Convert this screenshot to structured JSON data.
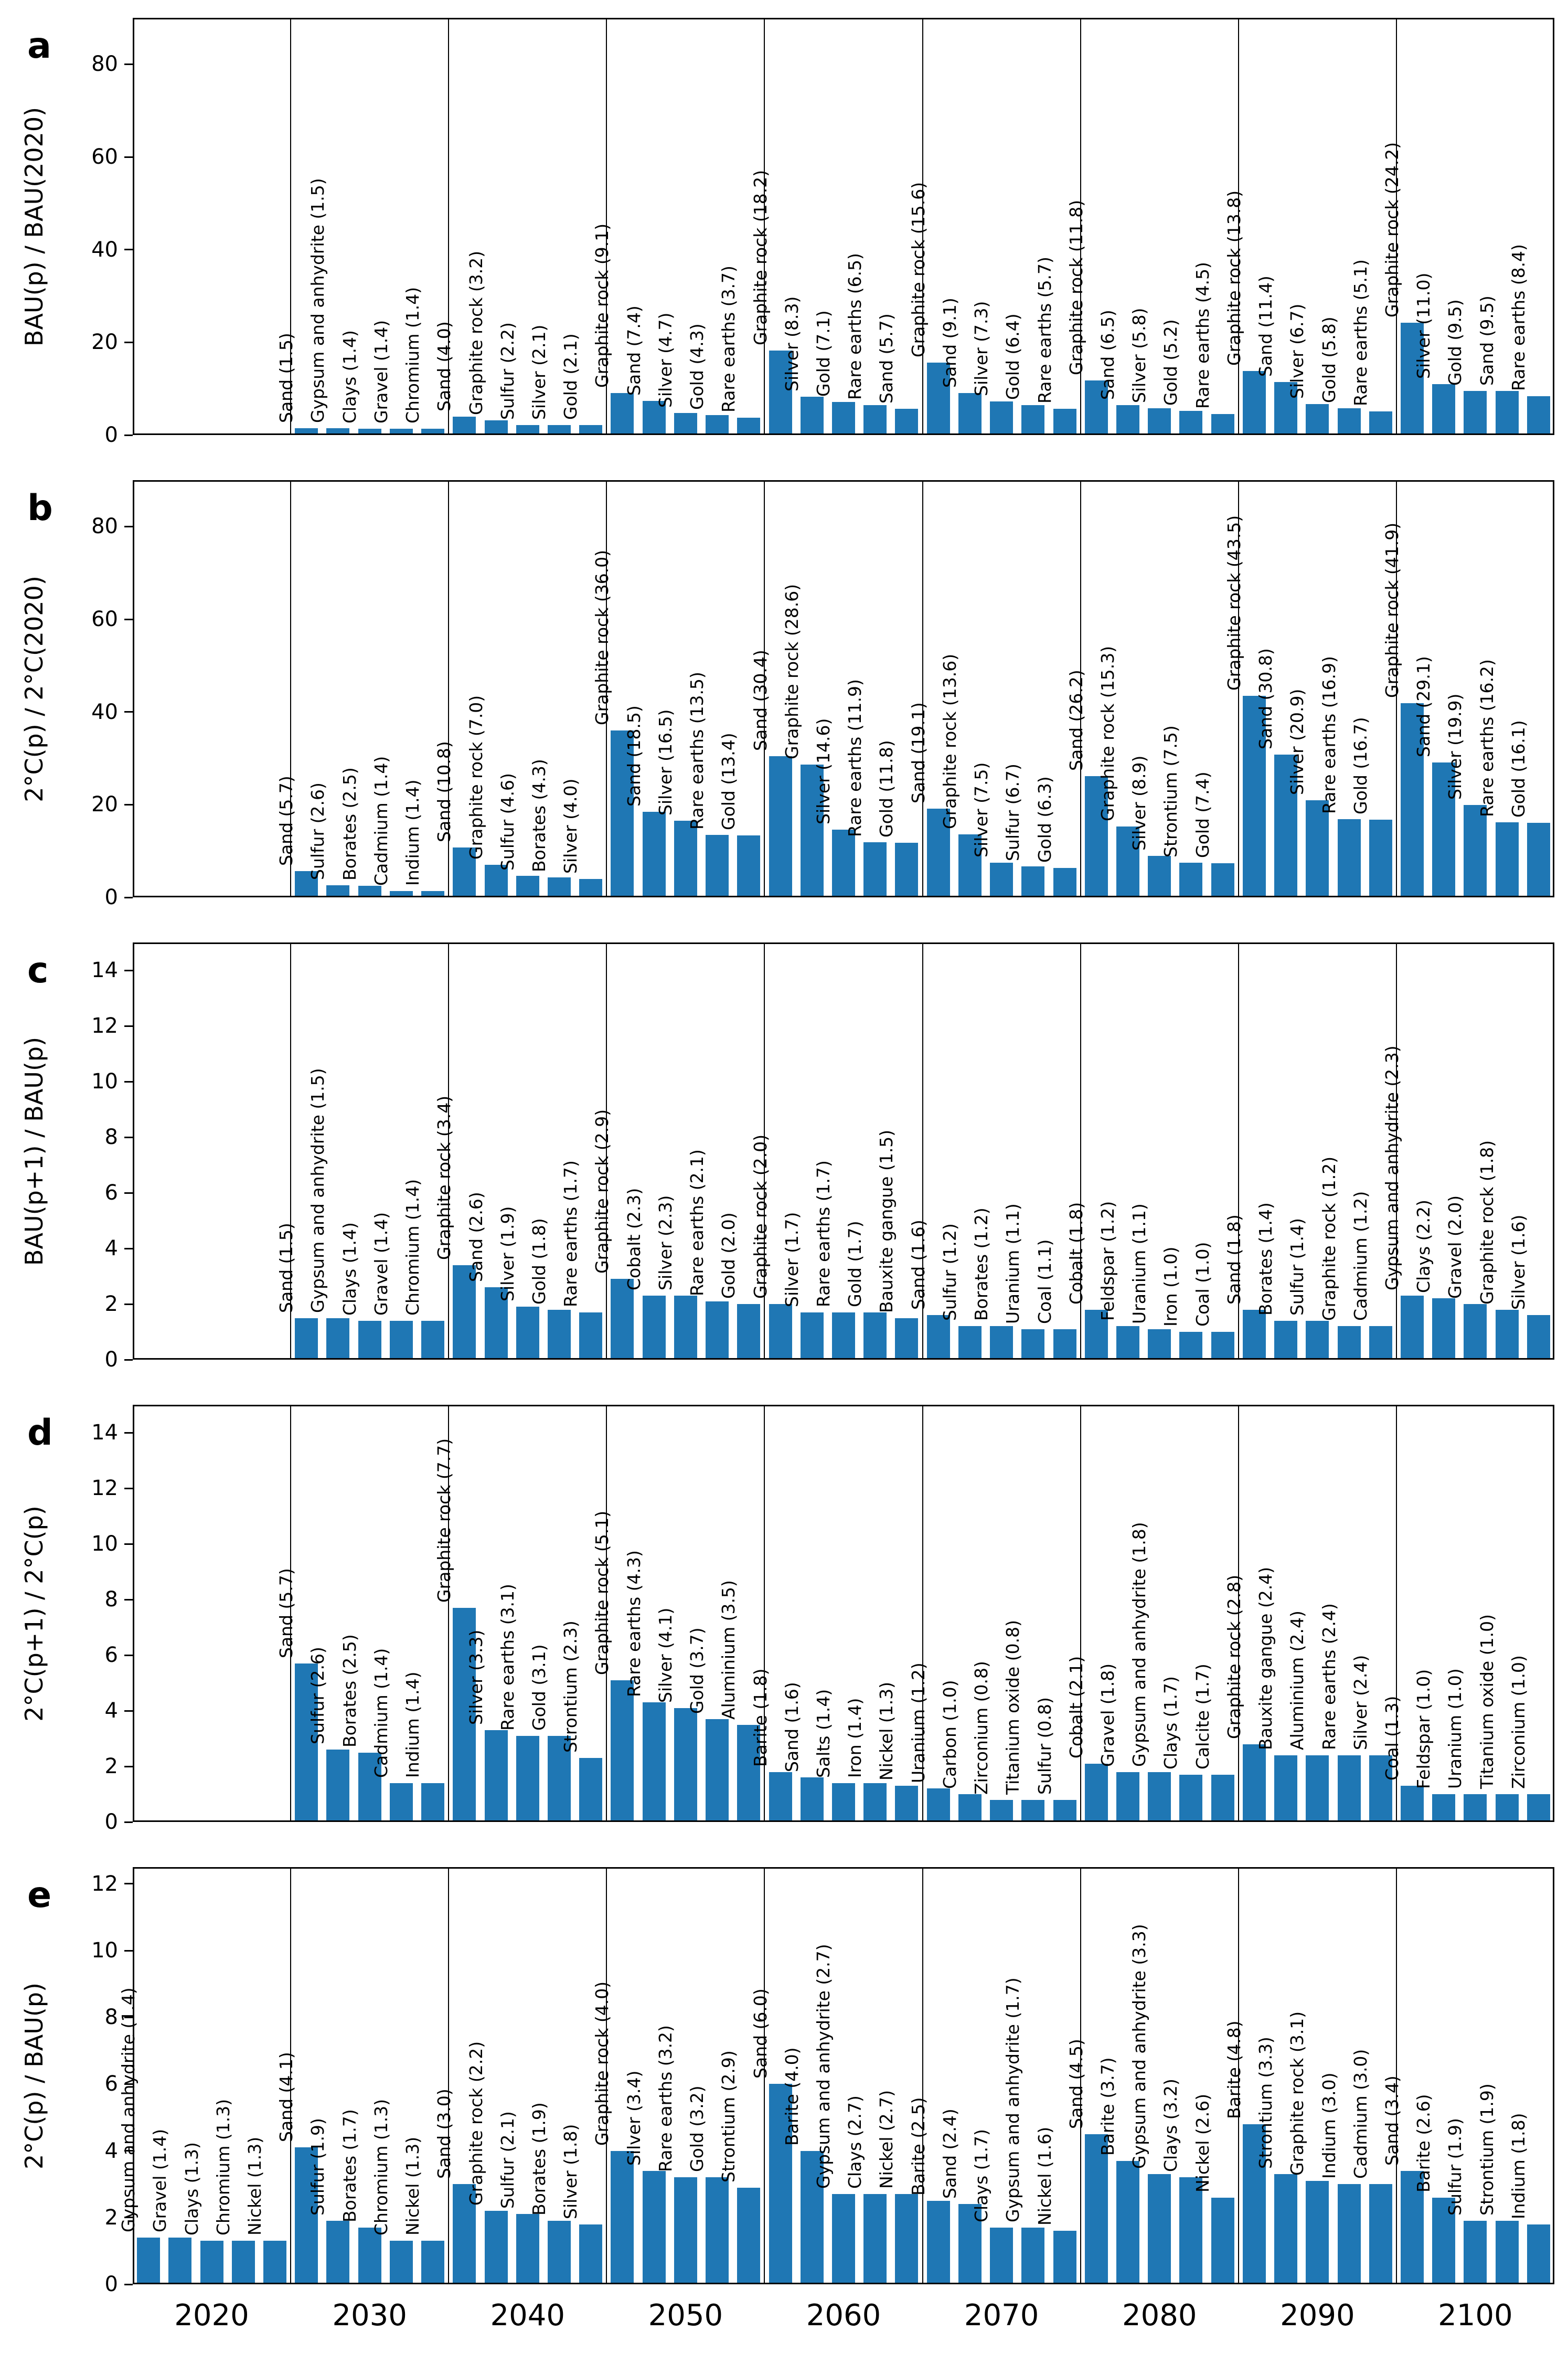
{
  "figure": {
    "bar_color": "#1f77b4",
    "frame_color": "#000000",
    "text_color": "#000000",
    "background": "#ffffff"
  },
  "x_axis": {
    "categories": [
      "2020",
      "2030",
      "2040",
      "2050",
      "2060",
      "2070",
      "2080",
      "2090",
      "2100"
    ]
  },
  "chart_data": [
    {
      "type": "bar",
      "panel_letter": "a",
      "ylabel": "BAU(p) / BAU(2020)",
      "yticks": [
        0,
        20,
        40,
        60,
        80
      ],
      "ylim": [
        0,
        90
      ],
      "grid": false,
      "groups": [
        [],
        [
          {
            "label": "Sand",
            "value": 1.5
          },
          {
            "label": "Gypsum and anhydrite",
            "value": 1.5
          },
          {
            "label": "Clays",
            "value": 1.4
          },
          {
            "label": "Gravel",
            "value": 1.4
          },
          {
            "label": "Chromium",
            "value": 1.4
          }
        ],
        [
          {
            "label": "Sand",
            "value": 4.0
          },
          {
            "label": "Graphite rock",
            "value": 3.2
          },
          {
            "label": "Sulfur",
            "value": 2.2
          },
          {
            "label": "Silver",
            "value": 2.1
          },
          {
            "label": "Gold",
            "value": 2.1
          }
        ],
        [
          {
            "label": "Graphite rock",
            "value": 9.1
          },
          {
            "label": "Sand",
            "value": 7.4
          },
          {
            "label": "Silver",
            "value": 4.7
          },
          {
            "label": "Gold",
            "value": 4.3
          },
          {
            "label": "Rare earths",
            "value": 3.7
          }
        ],
        [
          {
            "label": "Graphite rock",
            "value": 18.2
          },
          {
            "label": "Silver",
            "value": 8.3
          },
          {
            "label": "Gold",
            "value": 7.1
          },
          {
            "label": "Rare earths",
            "value": 6.5
          },
          {
            "label": "Sand",
            "value": 5.7
          }
        ],
        [
          {
            "label": "Graphite rock",
            "value": 15.6
          },
          {
            "label": "Sand",
            "value": 9.1
          },
          {
            "label": "Silver",
            "value": 7.3
          },
          {
            "label": "Gold",
            "value": 6.4
          },
          {
            "label": "Rare earths",
            "value": 5.7
          }
        ],
        [
          {
            "label": "Graphite rock",
            "value": 11.8
          },
          {
            "label": "Sand",
            "value": 6.5
          },
          {
            "label": "Silver",
            "value": 5.8
          },
          {
            "label": "Gold",
            "value": 5.2
          },
          {
            "label": "Rare earths",
            "value": 4.5
          }
        ],
        [
          {
            "label": "Graphite rock",
            "value": 13.8
          },
          {
            "label": "Sand",
            "value": 11.4
          },
          {
            "label": "Silver",
            "value": 6.7
          },
          {
            "label": "Gold",
            "value": 5.8
          },
          {
            "label": "Rare earths",
            "value": 5.1
          }
        ],
        [
          {
            "label": "Graphite rock",
            "value": 24.2
          },
          {
            "label": "Silver",
            "value": 11.0
          },
          {
            "label": "Gold",
            "value": 9.5
          },
          {
            "label": "Sand",
            "value": 9.5
          },
          {
            "label": "Rare earths",
            "value": 8.4
          }
        ]
      ]
    },
    {
      "type": "bar",
      "panel_letter": "b",
      "ylabel": "2°C(p) / 2°C(2020)",
      "yticks": [
        0,
        20,
        40,
        60,
        80
      ],
      "ylim": [
        0,
        90
      ],
      "grid": false,
      "groups": [
        [],
        [
          {
            "label": "Sand",
            "value": 5.7
          },
          {
            "label": "Sulfur",
            "value": 2.6
          },
          {
            "label": "Borates",
            "value": 2.5
          },
          {
            "label": "Cadmium",
            "value": 1.4
          },
          {
            "label": "Indium",
            "value": 1.4
          }
        ],
        [
          {
            "label": "Sand",
            "value": 10.8
          },
          {
            "label": "Graphite rock",
            "value": 7.0
          },
          {
            "label": "Sulfur",
            "value": 4.6
          },
          {
            "label": "Borates",
            "value": 4.3
          },
          {
            "label": "Silver",
            "value": 4.0
          }
        ],
        [
          {
            "label": "Graphite rock",
            "value": 36.0
          },
          {
            "label": "Sand",
            "value": 18.5
          },
          {
            "label": "Silver",
            "value": 16.5
          },
          {
            "label": "Rare earths",
            "value": 13.5
          },
          {
            "label": "Gold",
            "value": 13.4
          }
        ],
        [
          {
            "label": "Sand",
            "value": 30.4
          },
          {
            "label": "Graphite rock",
            "value": 28.6
          },
          {
            "label": "Silver",
            "value": 14.6
          },
          {
            "label": "Rare earths",
            "value": 11.9
          },
          {
            "label": "Gold",
            "value": 11.8
          }
        ],
        [
          {
            "label": "Sand",
            "value": 19.1
          },
          {
            "label": "Graphite rock",
            "value": 13.6
          },
          {
            "label": "Silver",
            "value": 7.5
          },
          {
            "label": "Sulfur",
            "value": 6.7
          },
          {
            "label": "Gold",
            "value": 6.3
          }
        ],
        [
          {
            "label": "Sand",
            "value": 26.2
          },
          {
            "label": "Graphite rock",
            "value": 15.3
          },
          {
            "label": "Silver",
            "value": 8.9
          },
          {
            "label": "Strontium",
            "value": 7.5
          },
          {
            "label": "Gold",
            "value": 7.4
          }
        ],
        [
          {
            "label": "Graphite rock",
            "value": 43.5
          },
          {
            "label": "Sand",
            "value": 30.8
          },
          {
            "label": "Silver",
            "value": 20.9
          },
          {
            "label": "Rare earths",
            "value": 16.9
          },
          {
            "label": "Gold",
            "value": 16.7
          }
        ],
        [
          {
            "label": "Graphite rock",
            "value": 41.9
          },
          {
            "label": "Sand",
            "value": 29.1
          },
          {
            "label": "Silver",
            "value": 19.9
          },
          {
            "label": "Rare earths",
            "value": 16.2
          },
          {
            "label": "Gold",
            "value": 16.1
          }
        ]
      ]
    },
    {
      "type": "bar",
      "panel_letter": "c",
      "ylabel": "BAU(p+1) / BAU(p)",
      "yticks": [
        0,
        2,
        4,
        6,
        8,
        10,
        12,
        14
      ],
      "ylim": [
        0,
        15
      ],
      "grid": false,
      "groups": [
        [],
        [
          {
            "label": "Sand",
            "value": 1.5
          },
          {
            "label": "Gypsum and anhydrite",
            "value": 1.5
          },
          {
            "label": "Clays",
            "value": 1.4
          },
          {
            "label": "Gravel",
            "value": 1.4
          },
          {
            "label": "Chromium",
            "value": 1.4
          }
        ],
        [
          {
            "label": "Graphite rock",
            "value": 3.4
          },
          {
            "label": "Sand",
            "value": 2.6
          },
          {
            "label": "Silver",
            "value": 1.9
          },
          {
            "label": "Gold",
            "value": 1.8
          },
          {
            "label": "Rare earths",
            "value": 1.7
          }
        ],
        [
          {
            "label": "Graphite rock",
            "value": 2.9
          },
          {
            "label": "Cobalt",
            "value": 2.3
          },
          {
            "label": "Silver",
            "value": 2.3
          },
          {
            "label": "Rare earths",
            "value": 2.1
          },
          {
            "label": "Gold",
            "value": 2.0
          }
        ],
        [
          {
            "label": "Graphite rock",
            "value": 2.0
          },
          {
            "label": "Silver",
            "value": 1.7
          },
          {
            "label": "Rare earths",
            "value": 1.7
          },
          {
            "label": "Gold",
            "value": 1.7
          },
          {
            "label": "Bauxite gangue",
            "value": 1.5
          }
        ],
        [
          {
            "label": "Sand",
            "value": 1.6
          },
          {
            "label": "Sulfur",
            "value": 1.2
          },
          {
            "label": "Borates",
            "value": 1.2
          },
          {
            "label": "Uranium",
            "value": 1.1
          },
          {
            "label": "Coal",
            "value": 1.1
          }
        ],
        [
          {
            "label": "Cobalt",
            "value": 1.8
          },
          {
            "label": "Feldspar",
            "value": 1.2
          },
          {
            "label": "Uranium",
            "value": 1.1
          },
          {
            "label": "Iron",
            "value": 1.0
          },
          {
            "label": "Coal",
            "value": 1.0
          }
        ],
        [
          {
            "label": "Sand",
            "value": 1.8
          },
          {
            "label": "Borates",
            "value": 1.4
          },
          {
            "label": "Sulfur",
            "value": 1.4
          },
          {
            "label": "Graphite rock",
            "value": 1.2
          },
          {
            "label": "Cadmium",
            "value": 1.2
          }
        ],
        [
          {
            "label": "Gypsum and anhydrite",
            "value": 2.3
          },
          {
            "label": "Clays",
            "value": 2.2
          },
          {
            "label": "Gravel",
            "value": 2.0
          },
          {
            "label": "Graphite rock",
            "value": 1.8
          },
          {
            "label": "Silver",
            "value": 1.6
          }
        ]
      ]
    },
    {
      "type": "bar",
      "panel_letter": "d",
      "ylabel": "2°C(p+1) / 2°C(p)",
      "yticks": [
        0,
        2,
        4,
        6,
        8,
        10,
        12,
        14
      ],
      "ylim": [
        0,
        15
      ],
      "grid": false,
      "groups": [
        [],
        [
          {
            "label": "Sand",
            "value": 5.7
          },
          {
            "label": "Sulfur",
            "value": 2.6
          },
          {
            "label": "Borates",
            "value": 2.5
          },
          {
            "label": "Cadmium",
            "value": 1.4
          },
          {
            "label": "Indium",
            "value": 1.4
          }
        ],
        [
          {
            "label": "Graphite rock",
            "value": 7.7
          },
          {
            "label": "Silver",
            "value": 3.3
          },
          {
            "label": "Rare earths",
            "value": 3.1
          },
          {
            "label": "Gold",
            "value": 3.1
          },
          {
            "label": "Strontium",
            "value": 2.3
          }
        ],
        [
          {
            "label": "Graphite rock",
            "value": 5.1
          },
          {
            "label": "Rare earths",
            "value": 4.3
          },
          {
            "label": "Silver",
            "value": 4.1
          },
          {
            "label": "Gold",
            "value": 3.7
          },
          {
            "label": "Aluminium",
            "value": 3.5
          }
        ],
        [
          {
            "label": "Barite",
            "value": 1.8
          },
          {
            "label": "Sand",
            "value": 1.6
          },
          {
            "label": "Salts",
            "value": 1.4
          },
          {
            "label": "Iron",
            "value": 1.4
          },
          {
            "label": "Nickel",
            "value": 1.3
          }
        ],
        [
          {
            "label": "Uranium",
            "value": 1.2
          },
          {
            "label": "Carbon",
            "value": 1.0
          },
          {
            "label": "Zirconium",
            "value": 0.8
          },
          {
            "label": "Titanium oxide",
            "value": 0.8
          },
          {
            "label": "Sulfur",
            "value": 0.8
          }
        ],
        [
          {
            "label": "Cobalt",
            "value": 2.1
          },
          {
            "label": "Gravel",
            "value": 1.8
          },
          {
            "label": "Gypsum and anhydrite",
            "value": 1.8
          },
          {
            "label": "Clays",
            "value": 1.7
          },
          {
            "label": "Calcite",
            "value": 1.7
          }
        ],
        [
          {
            "label": "Graphite rock",
            "value": 2.8
          },
          {
            "label": "Bauxite gangue",
            "value": 2.4
          },
          {
            "label": "Aluminium",
            "value": 2.4
          },
          {
            "label": "Rare earths",
            "value": 2.4
          },
          {
            "label": "Silver",
            "value": 2.4
          }
        ],
        [
          {
            "label": "Coal",
            "value": 1.3
          },
          {
            "label": "Feldspar",
            "value": 1.0
          },
          {
            "label": "Uranium",
            "value": 1.0
          },
          {
            "label": "Titanium oxide",
            "value": 1.0
          },
          {
            "label": "Zirconium",
            "value": 1.0
          }
        ]
      ]
    },
    {
      "type": "bar",
      "panel_letter": "e",
      "ylabel": "2°C(p) / BAU(p)",
      "yticks": [
        0,
        2,
        4,
        6,
        8,
        10,
        12
      ],
      "ylim": [
        0,
        12.5
      ],
      "grid": false,
      "groups": [
        [
          {
            "label": "Gypsum and anhydrite",
            "value": 1.4
          },
          {
            "label": "Gravel",
            "value": 1.4
          },
          {
            "label": "Clays",
            "value": 1.3
          },
          {
            "label": "Chromium",
            "value": 1.3
          },
          {
            "label": "Nickel",
            "value": 1.3
          }
        ],
        [
          {
            "label": "Sand",
            "value": 4.1
          },
          {
            "label": "Sulfur",
            "value": 1.9
          },
          {
            "label": "Borates",
            "value": 1.7
          },
          {
            "label": "Chromium",
            "value": 1.3
          },
          {
            "label": "Nickel",
            "value": 1.3
          }
        ],
        [
          {
            "label": "Sand",
            "value": 3.0
          },
          {
            "label": "Graphite rock",
            "value": 2.2
          },
          {
            "label": "Sulfur",
            "value": 2.1
          },
          {
            "label": "Borates",
            "value": 1.9
          },
          {
            "label": "Silver",
            "value": 1.8
          }
        ],
        [
          {
            "label": "Graphite rock",
            "value": 4.0
          },
          {
            "label": "Silver",
            "value": 3.4
          },
          {
            "label": "Rare earths",
            "value": 3.2
          },
          {
            "label": "Gold",
            "value": 3.2
          },
          {
            "label": "Strontium",
            "value": 2.9
          }
        ],
        [
          {
            "label": "Sand",
            "value": 6.0
          },
          {
            "label": "Barite",
            "value": 4.0
          },
          {
            "label": "Gypsum and anhydrite",
            "value": 2.7
          },
          {
            "label": "Clays",
            "value": 2.7
          },
          {
            "label": "Nickel",
            "value": 2.7
          }
        ],
        [
          {
            "label": "Barite",
            "value": 2.5
          },
          {
            "label": "Sand",
            "value": 2.4
          },
          {
            "label": "Clays",
            "value": 1.7
          },
          {
            "label": "Gypsum and anhydrite",
            "value": 1.7
          },
          {
            "label": "Nickel",
            "value": 1.6
          }
        ],
        [
          {
            "label": "Sand",
            "value": 4.5
          },
          {
            "label": "Barite",
            "value": 3.7
          },
          {
            "label": "Gypsum and anhydrite",
            "value": 3.3
          },
          {
            "label": "Clays",
            "value": 3.2
          },
          {
            "label": "Nickel",
            "value": 2.6
          }
        ],
        [
          {
            "label": "Barite",
            "value": 4.8
          },
          {
            "label": "Strontium",
            "value": 3.3
          },
          {
            "label": "Graphite rock",
            "value": 3.1
          },
          {
            "label": "Indium",
            "value": 3.0
          },
          {
            "label": "Cadmium",
            "value": 3.0
          }
        ],
        [
          {
            "label": "Sand",
            "value": 3.4
          },
          {
            "label": "Barite",
            "value": 2.6
          },
          {
            "label": "Sulfur",
            "value": 1.9
          },
          {
            "label": "Strontium",
            "value": 1.9
          },
          {
            "label": "Indium",
            "value": 1.8
          }
        ]
      ]
    }
  ]
}
